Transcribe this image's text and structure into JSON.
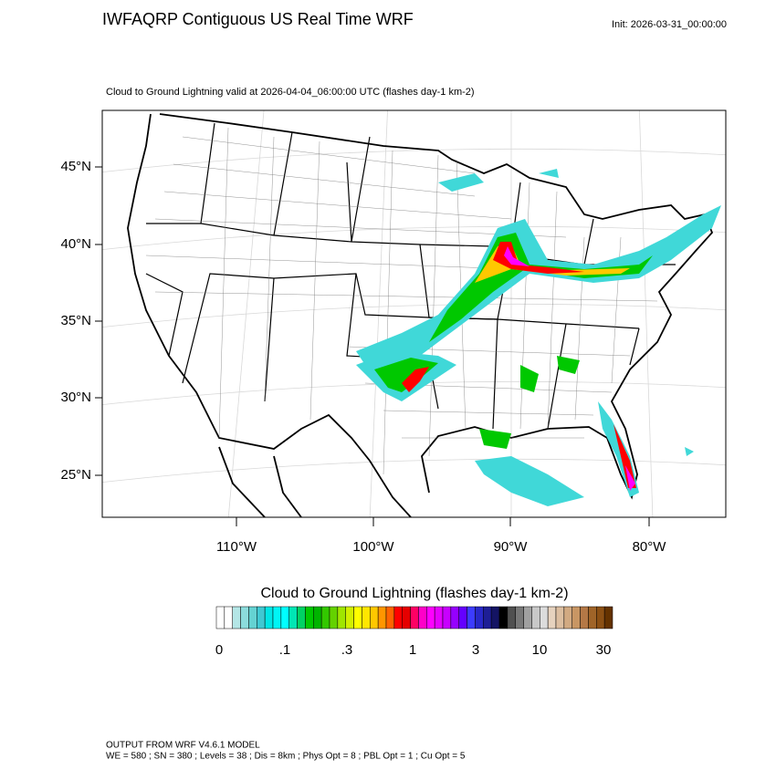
{
  "header": {
    "title": "IWFAQRP Contiguous US Real Time WRF",
    "init": "Init: 2026-03-31_00:00:00"
  },
  "map": {
    "subtitle": "Cloud to Ground Lightning valid at 2026-04-04_06:00:00 UTC   (flashes day-1 km-2)",
    "lat_labels": [
      "45°N",
      "40°N",
      "35°N",
      "30°N",
      "25°N"
    ],
    "lon_labels": [
      "110°W",
      "100°W",
      "90°W",
      "80°W"
    ]
  },
  "colorbar": {
    "title": "Cloud to Ground Lightning  (flashes day-1 km-2)",
    "labels": [
      "0",
      ".1",
      ".3",
      "1",
      "3",
      "10",
      "30"
    ],
    "colors": [
      "#ffffff",
      "#ffffff",
      "#b4e6e6",
      "#8cdcdc",
      "#64d2d2",
      "#40c8d2",
      "#00e6e6",
      "#00f5f5",
      "#00ffff",
      "#00e6b4",
      "#00d264",
      "#00c800",
      "#00b400",
      "#32c800",
      "#64d200",
      "#a0e600",
      "#d2f000",
      "#ffff00",
      "#ffe600",
      "#ffc800",
      "#ff9600",
      "#ff6400",
      "#ff0000",
      "#e60000",
      "#ff0064",
      "#ff00c8",
      "#ff00ff",
      "#e600ff",
      "#c800ff",
      "#9600ff",
      "#6400ff",
      "#3c3cff",
      "#2828c8",
      "#1e1e96",
      "#141464",
      "#000000",
      "#505050",
      "#787878",
      "#a0a0a0",
      "#c8c8c8",
      "#dcdcdc",
      "#e6d2be",
      "#dcbea0",
      "#d2aa82",
      "#c89664",
      "#b47846",
      "#a06428",
      "#8c5014",
      "#643200"
    ]
  },
  "footer": {
    "line1": "OUTPUT FROM WRF V4.6.1 MODEL",
    "line2": "WE = 580 ; SN = 380 ; Levels = 38 ; Dis = 8km ; Phys Opt = 8 ; PBL Opt = 1 ; Cu Opt = 5"
  }
}
